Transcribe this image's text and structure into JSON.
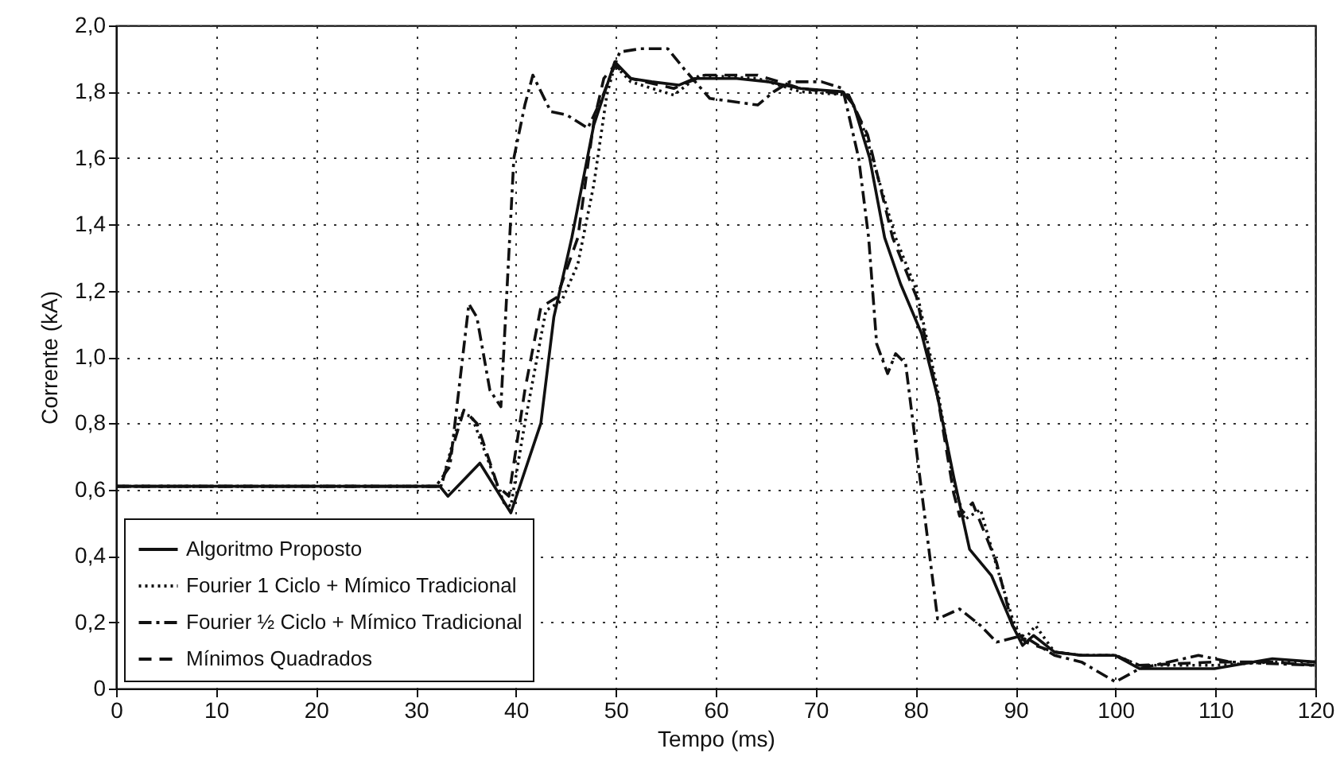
{
  "chart_data": {
    "type": "line",
    "xlabel": "Tempo (ms)",
    "ylabel": "Corrente (kA)",
    "xlim": [
      0,
      120
    ],
    "xticks": [
      0,
      10,
      20,
      30,
      40,
      50,
      60,
      70,
      80,
      90,
      100,
      110,
      120
    ],
    "ylim": [
      0,
      2
    ],
    "yticks": [
      0,
      {
        "value": 0.2,
        "label": "0,2"
      },
      {
        "value": 0.4,
        "label": "0,4"
      },
      {
        "value": 0.6,
        "label": "0,6"
      },
      {
        "value": 0.8,
        "label": "0,8"
      },
      {
        "value": 1,
        "label": "1,0"
      },
      {
        "value": 1.2,
        "label": "1,2"
      },
      {
        "value": 1.4,
        "label": "1,4"
      },
      {
        "value": 1.6,
        "label": "1,6"
      },
      {
        "value": 1.8,
        "label": "1,8"
      },
      {
        "value": 2,
        "label": "2,0"
      }
    ],
    "grid": true,
    "legend": "bottom left",
    "series": [
      {
        "name": "Algoritmo Proposto",
        "color": "#111111",
        "line_style": "solid",
        "x": [
          0,
          32.4,
          33.2,
          36.4,
          39.5,
          42.5,
          43.8,
          45.6,
          47.8,
          49.9,
          51.5,
          53.6,
          56.3,
          57.9,
          62.1,
          65.3,
          68.5,
          72.7,
          73.8,
          75.4,
          76.9,
          78.5,
          80.6,
          82.2,
          83.8,
          85.4,
          87.6,
          89.7,
          90.7,
          91.8,
          93.9,
          96.6,
          100,
          102.4,
          109.9,
          115.7,
          120
        ],
        "values": [
          0.61,
          0.61,
          0.58,
          0.68,
          0.53,
          0.8,
          1.12,
          1.36,
          1.7,
          1.89,
          1.84,
          1.83,
          1.82,
          1.84,
          1.84,
          1.83,
          1.81,
          1.8,
          1.76,
          1.6,
          1.36,
          1.22,
          1.07,
          0.88,
          0.64,
          0.42,
          0.34,
          0.19,
          0.13,
          0.16,
          0.11,
          0.1,
          0.1,
          0.06,
          0.06,
          0.09,
          0.08
        ]
      },
      {
        "name": "Fourier 1 Ciclo + Mímico Tradicional",
        "color": "#111111",
        "line_style": "dotted",
        "x": [
          0,
          32.5,
          34.5,
          35.6,
          38.8,
          39.5,
          40.9,
          43,
          44.6,
          46.2,
          47.8,
          49.1,
          49.9,
          51.5,
          55.8,
          58.4,
          64.2,
          68.5,
          73.3,
          74.9,
          78,
          80.1,
          82.2,
          83.8,
          84.9,
          86.5,
          88.1,
          89.7,
          90.7,
          92,
          93.9,
          96.6,
          100,
          102.4,
          109.9,
          115.7,
          120
        ],
        "values": [
          0.61,
          0.61,
          0.83,
          0.82,
          0.56,
          0.55,
          0.8,
          1.14,
          1.17,
          1.28,
          1.52,
          1.79,
          1.88,
          1.83,
          1.79,
          1.85,
          1.84,
          1.8,
          1.79,
          1.68,
          1.36,
          1.2,
          0.9,
          0.62,
          0.51,
          0.54,
          0.37,
          0.21,
          0.14,
          0.19,
          0.11,
          0.1,
          0.1,
          0.07,
          0.07,
          0.08,
          0.08
        ]
      },
      {
        "name": "Fourier ½ Ciclo + Mímico Tradicional",
        "color": "#111111",
        "line_style": "dashdot",
        "x": [
          0,
          32,
          33.4,
          35.3,
          36.1,
          37.4,
          38.5,
          39.8,
          40.9,
          41.7,
          43.5,
          45.1,
          47.2,
          48.6,
          50.4,
          52.5,
          55.2,
          56.8,
          59.4,
          64.2,
          65.8,
          67.4,
          70.6,
          72.7,
          74.3,
          75.3,
          76.1,
          77.2,
          78,
          79,
          82.2,
          84.4,
          86.5,
          88.1,
          90.7,
          93.9,
          96.6,
          100,
          102.4,
          108.3,
          111.5,
          120
        ],
        "values": [
          0.61,
          0.61,
          0.67,
          1.16,
          1.12,
          0.9,
          0.85,
          1.6,
          1.76,
          1.85,
          1.74,
          1.73,
          1.69,
          1.78,
          1.92,
          1.93,
          1.93,
          1.87,
          1.78,
          1.76,
          1.8,
          1.83,
          1.83,
          1.81,
          1.6,
          1.36,
          1.04,
          0.95,
          1.01,
          0.98,
          0.21,
          0.24,
          0.19,
          0.14,
          0.16,
          0.1,
          0.08,
          0.02,
          0.06,
          0.1,
          0.08,
          0.07
        ]
      },
      {
        "name": "Mínimos Quadrados",
        "color": "#111111",
        "line_style": "dashed",
        "x": [
          0,
          32.5,
          34.8,
          36.1,
          38.2,
          39.3,
          40.9,
          42.5,
          44.1,
          46.2,
          47.8,
          48.8,
          49.9,
          51.5,
          55.8,
          58.9,
          64.2,
          68.5,
          73.3,
          75.2,
          77.7,
          80.1,
          82.2,
          83.8,
          84.4,
          85.7,
          88.1,
          89.7,
          91,
          93.9,
          96.6,
          100,
          102.4,
          109.9,
          115.7,
          120
        ],
        "values": [
          0.61,
          0.61,
          0.84,
          0.8,
          0.61,
          0.58,
          0.9,
          1.15,
          1.18,
          1.36,
          1.71,
          1.84,
          1.88,
          1.84,
          1.81,
          1.85,
          1.85,
          1.81,
          1.79,
          1.67,
          1.36,
          1.18,
          0.88,
          0.59,
          0.52,
          0.56,
          0.38,
          0.19,
          0.14,
          0.11,
          0.1,
          0.1,
          0.07,
          0.08,
          0.08,
          0.07
        ]
      }
    ]
  }
}
